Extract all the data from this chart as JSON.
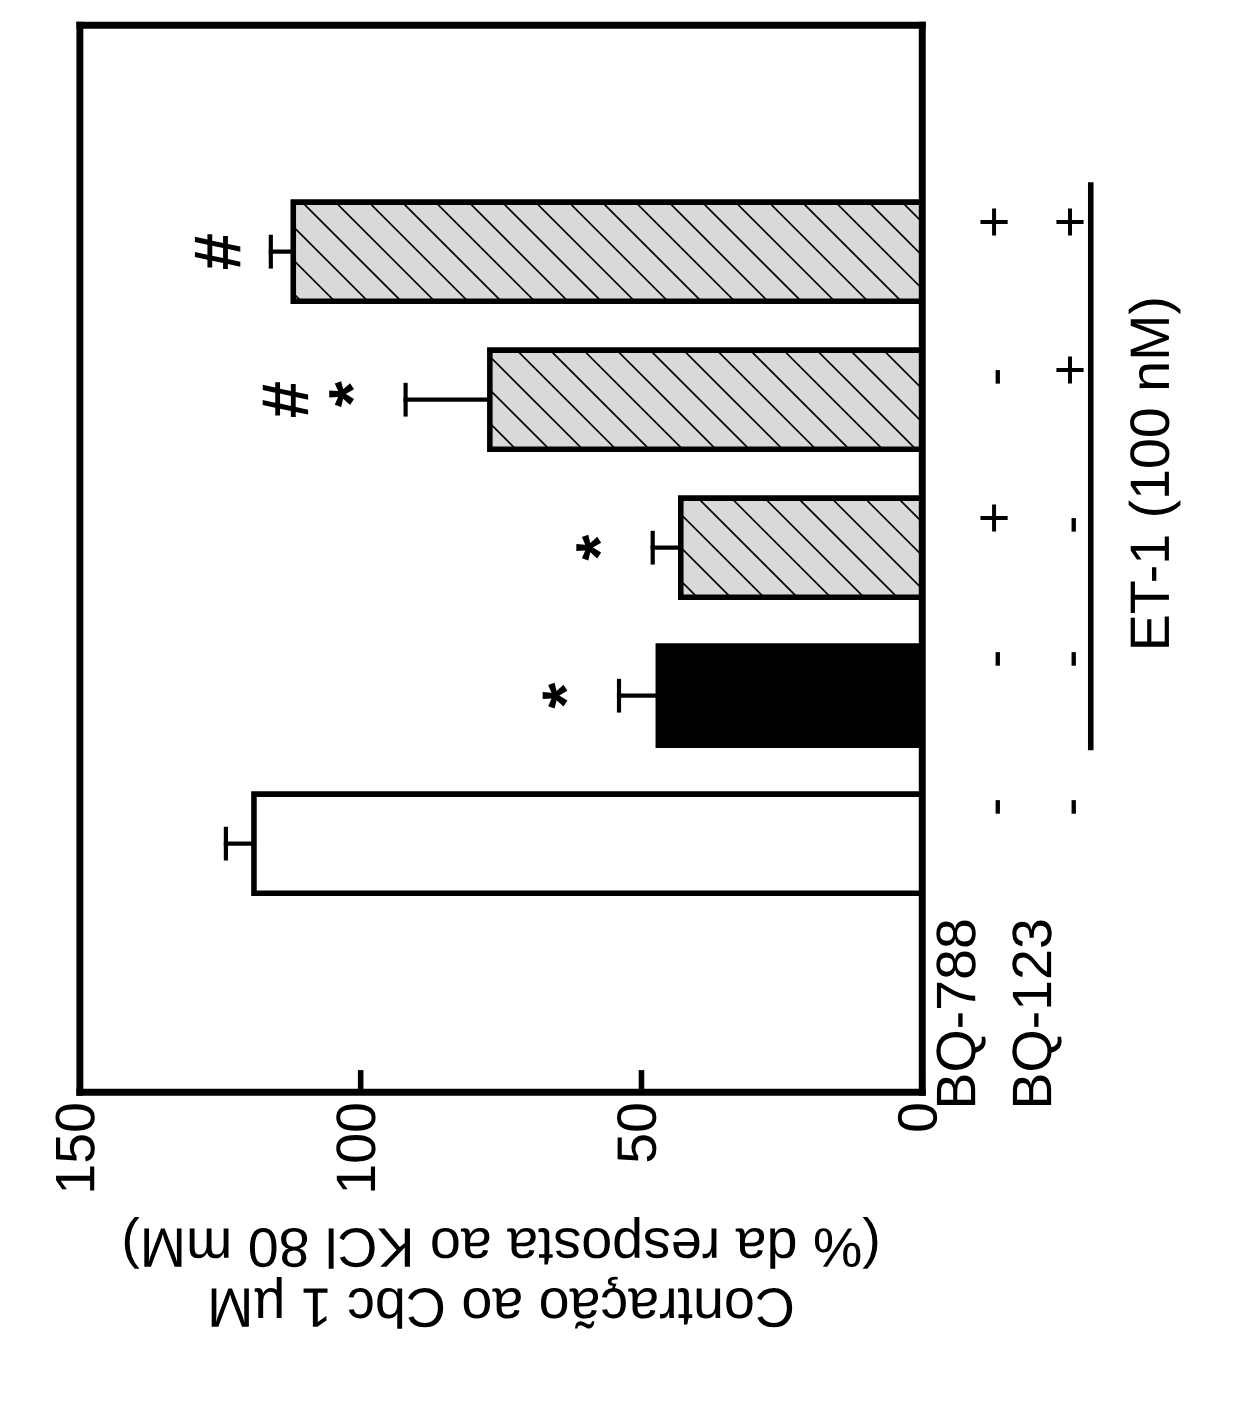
{
  "chart_data": {
    "type": "bar",
    "orientation": "horizontal",
    "xlabel": "Contração ao Cbc 1 µM\n(% da resposta ao KCl 80 mM)",
    "categories": [
      "+\n+",
      "-\n+",
      "+\n-",
      "-\n-",
      "-\n-"
    ],
    "values": [
      112,
      77,
      43,
      47,
      119
    ],
    "errors": [
      [
        112,
        116
      ],
      [
        77,
        92
      ],
      [
        43,
        48
      ],
      [
        47,
        54
      ],
      [
        119,
        124
      ]
    ],
    "colors": [
      "#d9d9d9",
      "#d9d9d9",
      "#d9d9d9",
      "#000000",
      "#ffffff"
    ],
    "xlim": [
      150,
      0
    ],
    "xticks": [
      150,
      100,
      50,
      0
    ],
    "annotations": [
      "#",
      "#\n*",
      "*",
      "*",
      "BQ-788\nBQ-123",
      "ET-1 (100 nM)"
    ],
    "grid": false,
    "legend": false
  }
}
